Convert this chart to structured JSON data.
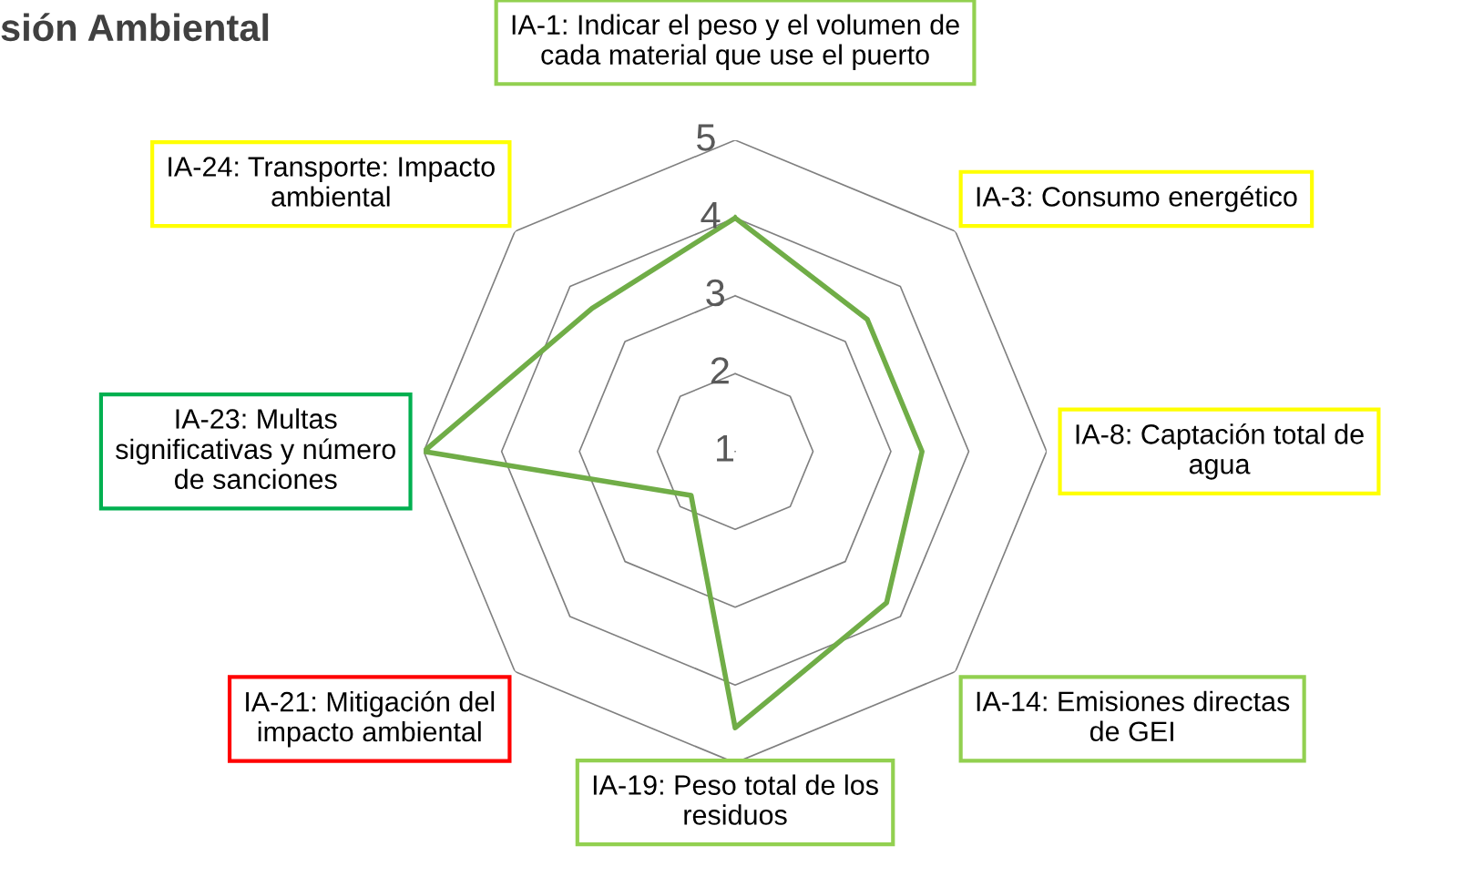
{
  "chart_data": {
    "type": "radar",
    "title": "sión Ambiental",
    "categories": [
      "IA-1: Indicar el peso y el volumen de\ncada material que use el puerto",
      "IA-3: Consumo energético",
      "IA-8: Captación total de\nagua",
      "IA-14: Emisiones directas\nde GEI",
      "IA-19: Peso total de los\nresiduos",
      "IA-21: Mitigación del\nimpacto ambiental",
      "IA-23: Multas\nsignificativas y número\nde sanciones",
      "IA-24: Transporte: Impacto\nambiental"
    ],
    "colors": [
      "#92d050",
      "#ffff00",
      "#ffff00",
      "#92d050",
      "#92d050",
      "#ff0000",
      "#00b050",
      "#ffff00"
    ],
    "series": [
      {
        "color": "#70ad47",
        "values": [
          4,
          3.4,
          3.4,
          3.75,
          4.55,
          1.8,
          5,
          3.6
        ]
      }
    ],
    "ylim": [
      1,
      5
    ],
    "yticks": [
      1,
      2,
      3,
      4,
      5
    ],
    "grid": true,
    "legend": false
  }
}
